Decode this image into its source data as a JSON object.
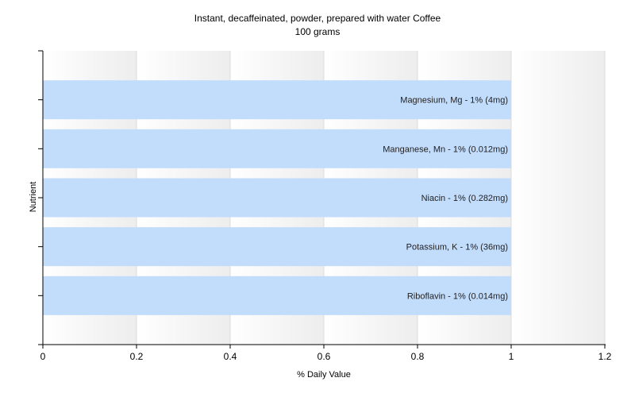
{
  "chart_data": {
    "type": "bar",
    "orientation": "horizontal",
    "title": "Instant, decaffeinated, powder, prepared with water Coffee",
    "subtitle": "100 grams",
    "xlabel": "% Daily Value",
    "ylabel": "Nutrient",
    "xlim": [
      0,
      1.2
    ],
    "xticks": [
      "0",
      "0.2",
      "0.4",
      "0.6",
      "0.8",
      "1",
      "1.2"
    ],
    "grid": true,
    "bar_color": "#c2dcfc",
    "categories": [
      "Magnesium, Mg",
      "Manganese, Mn",
      "Niacin",
      "Potassium, K",
      "Riboflavin"
    ],
    "values": [
      1,
      1,
      1,
      1,
      1
    ],
    "labels": [
      "Magnesium, Mg - 1% (4mg)",
      "Manganese, Mn - 1% (0.012mg)",
      "Niacin - 1% (0.282mg)",
      "Potassium, K - 1% (36mg)",
      "Riboflavin - 1% (0.014mg)"
    ]
  }
}
